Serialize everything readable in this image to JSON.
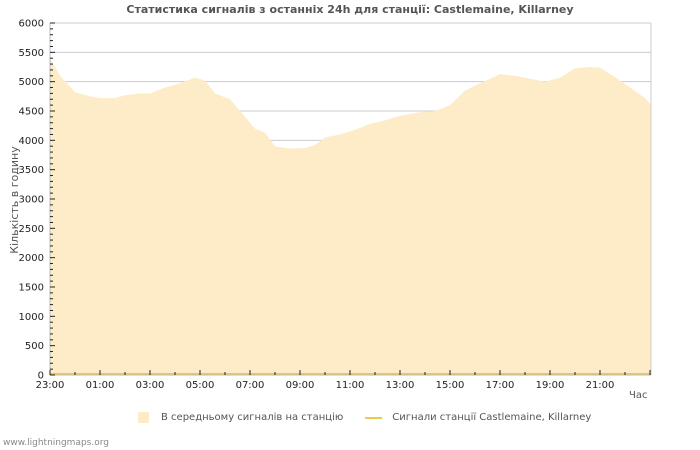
{
  "chart_data": {
    "type": "area",
    "title": "Статистика сигналів з останніх 24h для станції: Castlemaine, Killarney",
    "xlabel": "Час",
    "ylabel": "Кількість в годину",
    "ylim": [
      0,
      6000
    ],
    "yticks": [
      0,
      500,
      1000,
      1500,
      2000,
      2500,
      3000,
      3500,
      4000,
      4500,
      5000,
      5500,
      6000
    ],
    "xticks": [
      "23:00",
      "01:00",
      "03:00",
      "05:00",
      "07:00",
      "09:00",
      "11:00",
      "13:00",
      "15:00",
      "17:00",
      "19:00",
      "21:00"
    ],
    "grid": true,
    "legend_position": "bottom",
    "x": [
      "23:00",
      "23:24",
      "23:60",
      "00:36",
      "01:00",
      "01:36",
      "02:00",
      "02:36",
      "03:00",
      "03:36",
      "04:12",
      "04:48",
      "05:12",
      "05:36",
      "06:12",
      "06:36",
      "07:12",
      "07:36",
      "08:00",
      "08:36",
      "09:12",
      "09:36",
      "10:00",
      "10:36",
      "11:12",
      "11:48",
      "12:24",
      "13:00",
      "13:48",
      "14:24",
      "15:00",
      "15:36",
      "16:12",
      "16:36",
      "17:00",
      "17:36",
      "18:12",
      "18:48",
      "19:24",
      "20:00",
      "20:36",
      "21:00",
      "21:36",
      "22:12",
      "22:48",
      "23:00"
    ],
    "series": [
      {
        "name": "В середньому сигналів на станцію",
        "type": "area",
        "color": "#feecc8",
        "values": [
          5400,
          5100,
          4820,
          4750,
          4720,
          4720,
          4770,
          4800,
          4800,
          4900,
          4970,
          5070,
          5020,
          4800,
          4700,
          4500,
          4200,
          4130,
          3900,
          3860,
          3870,
          3920,
          4050,
          4100,
          4180,
          4280,
          4340,
          4420,
          4480,
          4500,
          4600,
          4850,
          4970,
          5050,
          5130,
          5100,
          5050,
          5000,
          5070,
          5230,
          5250,
          5240,
          5080,
          4900,
          4720,
          4600
        ]
      },
      {
        "name": "Сигнали станції Castlemaine, Killarney",
        "type": "line",
        "color": "#f0c850",
        "values": [
          0,
          0,
          0,
          0,
          0,
          0,
          0,
          0,
          0,
          0,
          0,
          0,
          0,
          0,
          0,
          0,
          0,
          0,
          0,
          0,
          0,
          0,
          0,
          0,
          0,
          0,
          0,
          0,
          0,
          0,
          0,
          0,
          0,
          0,
          0,
          0,
          0,
          0,
          0,
          0,
          0,
          0,
          0,
          0,
          0,
          0
        ]
      }
    ]
  },
  "legend": {
    "avg_label": "В середньому сигналів на станцію",
    "station_label": "Сигнали станції Castlemaine, Killarney"
  },
  "footer": "www.lightningmaps.org"
}
